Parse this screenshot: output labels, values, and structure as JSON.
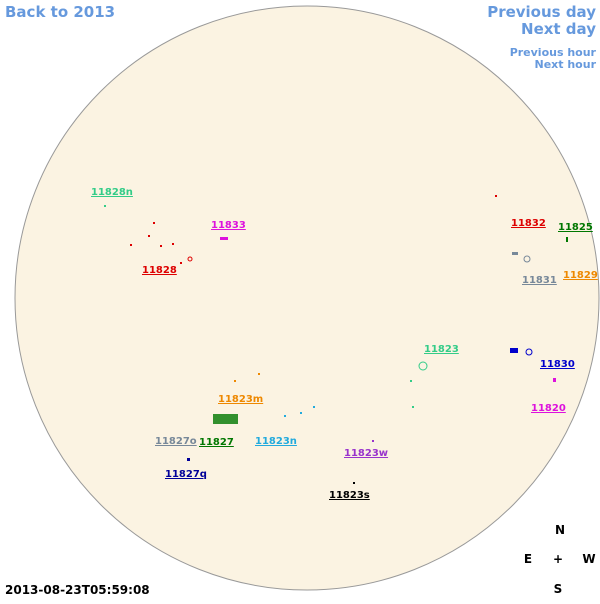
{
  "navigation": {
    "back": "Back to 2013",
    "previous_day": "Previous day",
    "next_day": "Next day",
    "previous_hour": "Previous hour",
    "next_hour": "Next hour"
  },
  "regions": [
    {
      "label": "11828n",
      "color": "#33cc88"
    },
    {
      "label": "11833",
      "color": "#dd11dd"
    },
    {
      "label": "11828",
      "color": "#dd0000"
    },
    {
      "label": "11832",
      "color": "#dd0000"
    },
    {
      "label": "11825",
      "color": "#007700"
    },
    {
      "label": "11831",
      "color": "#778899"
    },
    {
      "label": "11829",
      "color": "#ee8800"
    },
    {
      "label": "11823",
      "color": "#33cc88"
    },
    {
      "label": "11830",
      "color": "#0000cc"
    },
    {
      "label": "11820",
      "color": "#dd11dd"
    },
    {
      "label": "11823m",
      "color": "#ee8800"
    },
    {
      "label": "11827o",
      "color": "#778899"
    },
    {
      "label": "11827",
      "color": "#007700"
    },
    {
      "label": "11823n",
      "color": "#22aadd"
    },
    {
      "label": "11823w",
      "color": "#9933cc"
    },
    {
      "label": "11827q",
      "color": "#000099"
    },
    {
      "label": "11823s",
      "color": "#000000"
    }
  ],
  "timestamp": "2013-08-23T05:59:08",
  "compass": {
    "north": "N",
    "east": "E",
    "center": "+",
    "west": "W",
    "south": "S"
  }
}
